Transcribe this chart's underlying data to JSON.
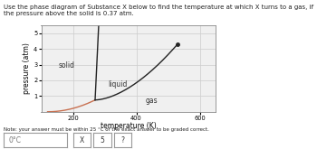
{
  "title": "Use the phase diagram of Substance X below to find the temperature at which X turns to a gas, if the pressure above the solid is 0.37 atm.",
  "xlabel": "temperature (K)",
  "ylabel": "pressure (atm)",
  "xlim": [
    100,
    650
  ],
  "ylim": [
    0,
    5.5
  ],
  "xticks": [
    200,
    400,
    600
  ],
  "yticks": [
    1,
    2,
    3,
    4,
    5
  ],
  "grid_color": "#cccccc",
  "background_color": "#f0f0f0",
  "label_solid": "solid",
  "label_liquid": "liquid",
  "label_gas": "gas",
  "note": "Note: your answer must be within 25 °C of the exact answer to be graded correct.",
  "answer_placeholder": "0°C",
  "triple_point_T": 270,
  "triple_point_P": 0.75,
  "critical_point_T": 530,
  "critical_point_P": 4.3,
  "sg_color": "#c87050",
  "line_color": "#222222",
  "title_fontsize": 5.0,
  "label_fontsize": 5.5,
  "tick_fontsize": 4.8
}
